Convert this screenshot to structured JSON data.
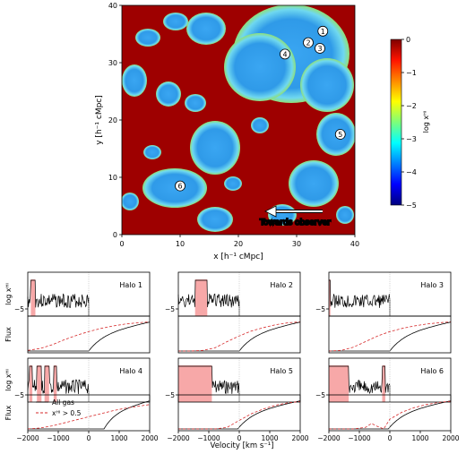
{
  "map": {
    "xlabel": "x [h⁻¹ cMpc]",
    "ylabel": "y [h⁻¹ cMpc]",
    "xticks": [
      "0",
      "10",
      "20",
      "30",
      "40"
    ],
    "yticks": [
      "0",
      "10",
      "20",
      "30",
      "40"
    ],
    "annotation": "Towards observer",
    "halo_markers": [
      {
        "label": "1",
        "x": 34.5,
        "y": 35.5
      },
      {
        "label": "2",
        "x": 32.0,
        "y": 33.5
      },
      {
        "label": "3",
        "x": 34.0,
        "y": 32.5
      },
      {
        "label": "4",
        "x": 28.0,
        "y": 31.5
      },
      {
        "label": "5",
        "x": 37.5,
        "y": 17.5
      },
      {
        "label": "6",
        "x": 10.0,
        "y": 8.5
      }
    ]
  },
  "colorbar": {
    "label": "log xᴴᴵ",
    "ticks": [
      "0",
      "−1",
      "−2",
      "−3",
      "−4",
      "−5"
    ]
  },
  "colors": {
    "gas_line": "#000000",
    "neutral_line": "#d62728",
    "shade": "#f7a8a8",
    "map_bg": "#9e0000"
  },
  "panels": {
    "ylabel_top": "log xᴴᴵ",
    "ylabel_bottom": "Flux",
    "top_ytick": "−5",
    "xlabel": "Velocity [km s⁻¹]",
    "xticks": [
      "−2000",
      "−1000",
      "0",
      "1000",
      "2000"
    ]
  },
  "legend": {
    "all_gas": "All gas",
    "neutral": "xᴴᴵ > 0.5"
  },
  "chart_data": {
    "type": "line",
    "xlim": [
      -2000,
      2000
    ],
    "halos": [
      {
        "name": "Halo 1",
        "shade": [
          [
            -1900,
            -1750
          ]
        ],
        "flux_rise_v": 0,
        "neutral_x": [
          -2000,
          -1600,
          -1200,
          -800,
          -400,
          0,
          400,
          800,
          1200,
          1600,
          2000
        ],
        "neutral_flux": [
          0.02,
          0.08,
          0.2,
          0.36,
          0.5,
          0.62,
          0.72,
          0.8,
          0.86,
          0.9,
          0.93
        ]
      },
      {
        "name": "Halo 2",
        "shade": [
          [
            -1450,
            -1050
          ]
        ],
        "flux_rise_v": 0,
        "neutral_x": [
          -2000,
          -1600,
          -1200,
          -800,
          -400,
          0,
          400,
          800,
          1200,
          1600,
          2000
        ],
        "neutral_flux": [
          0,
          0,
          0.02,
          0.1,
          0.3,
          0.48,
          0.64,
          0.75,
          0.84,
          0.9,
          0.93
        ]
      },
      {
        "name": "Halo 3",
        "shade": [
          [
            -2000,
            -1950
          ]
        ],
        "flux_rise_v": 0,
        "neutral_x": [
          -2000,
          -1600,
          -1200,
          -800,
          -400,
          0,
          400,
          800,
          1200,
          1600,
          2000
        ],
        "neutral_flux": [
          0,
          0.02,
          0.12,
          0.3,
          0.48,
          0.62,
          0.72,
          0.8,
          0.86,
          0.9,
          0.93
        ]
      },
      {
        "name": "Halo 4",
        "shade": [
          [
            -1950,
            -1850
          ],
          [
            -1700,
            -1550
          ],
          [
            -1450,
            -1300
          ],
          [
            -1150,
            -1050
          ]
        ],
        "flux_rise_v": 500,
        "neutral_x": [
          -2000,
          -1600,
          -1200,
          -800,
          -400,
          0,
          400,
          800,
          1200,
          1600,
          2000
        ],
        "neutral_flux": [
          0,
          0.03,
          0.1,
          0.2,
          0.3,
          0.4,
          0.5,
          0.6,
          0.68,
          0.74,
          0.8
        ]
      },
      {
        "name": "Halo 5",
        "shade": [
          [
            -2000,
            -900
          ]
        ],
        "flux_rise_v": -50,
        "neutral_x": [
          -2000,
          -1600,
          -1200,
          -800,
          -400,
          0,
          400,
          800,
          1200,
          1600,
          2000
        ],
        "neutral_flux": [
          0,
          0,
          0,
          0,
          0.05,
          0.28,
          0.5,
          0.66,
          0.78,
          0.86,
          0.9
        ]
      },
      {
        "name": "Halo 6",
        "shade": [
          [
            -2000,
            -1350
          ],
          [
            -250,
            -150
          ]
        ],
        "flux_rise_v": -50,
        "neutral_x": [
          -2000,
          -1600,
          -1200,
          -800,
          -600,
          -400,
          -200,
          0,
          400,
          800,
          1200,
          1600,
          2000
        ],
        "neutral_flux": [
          0,
          0,
          0,
          0.05,
          0.18,
          0.08,
          0,
          0.32,
          0.55,
          0.7,
          0.8,
          0.87,
          0.91
        ]
      }
    ]
  }
}
